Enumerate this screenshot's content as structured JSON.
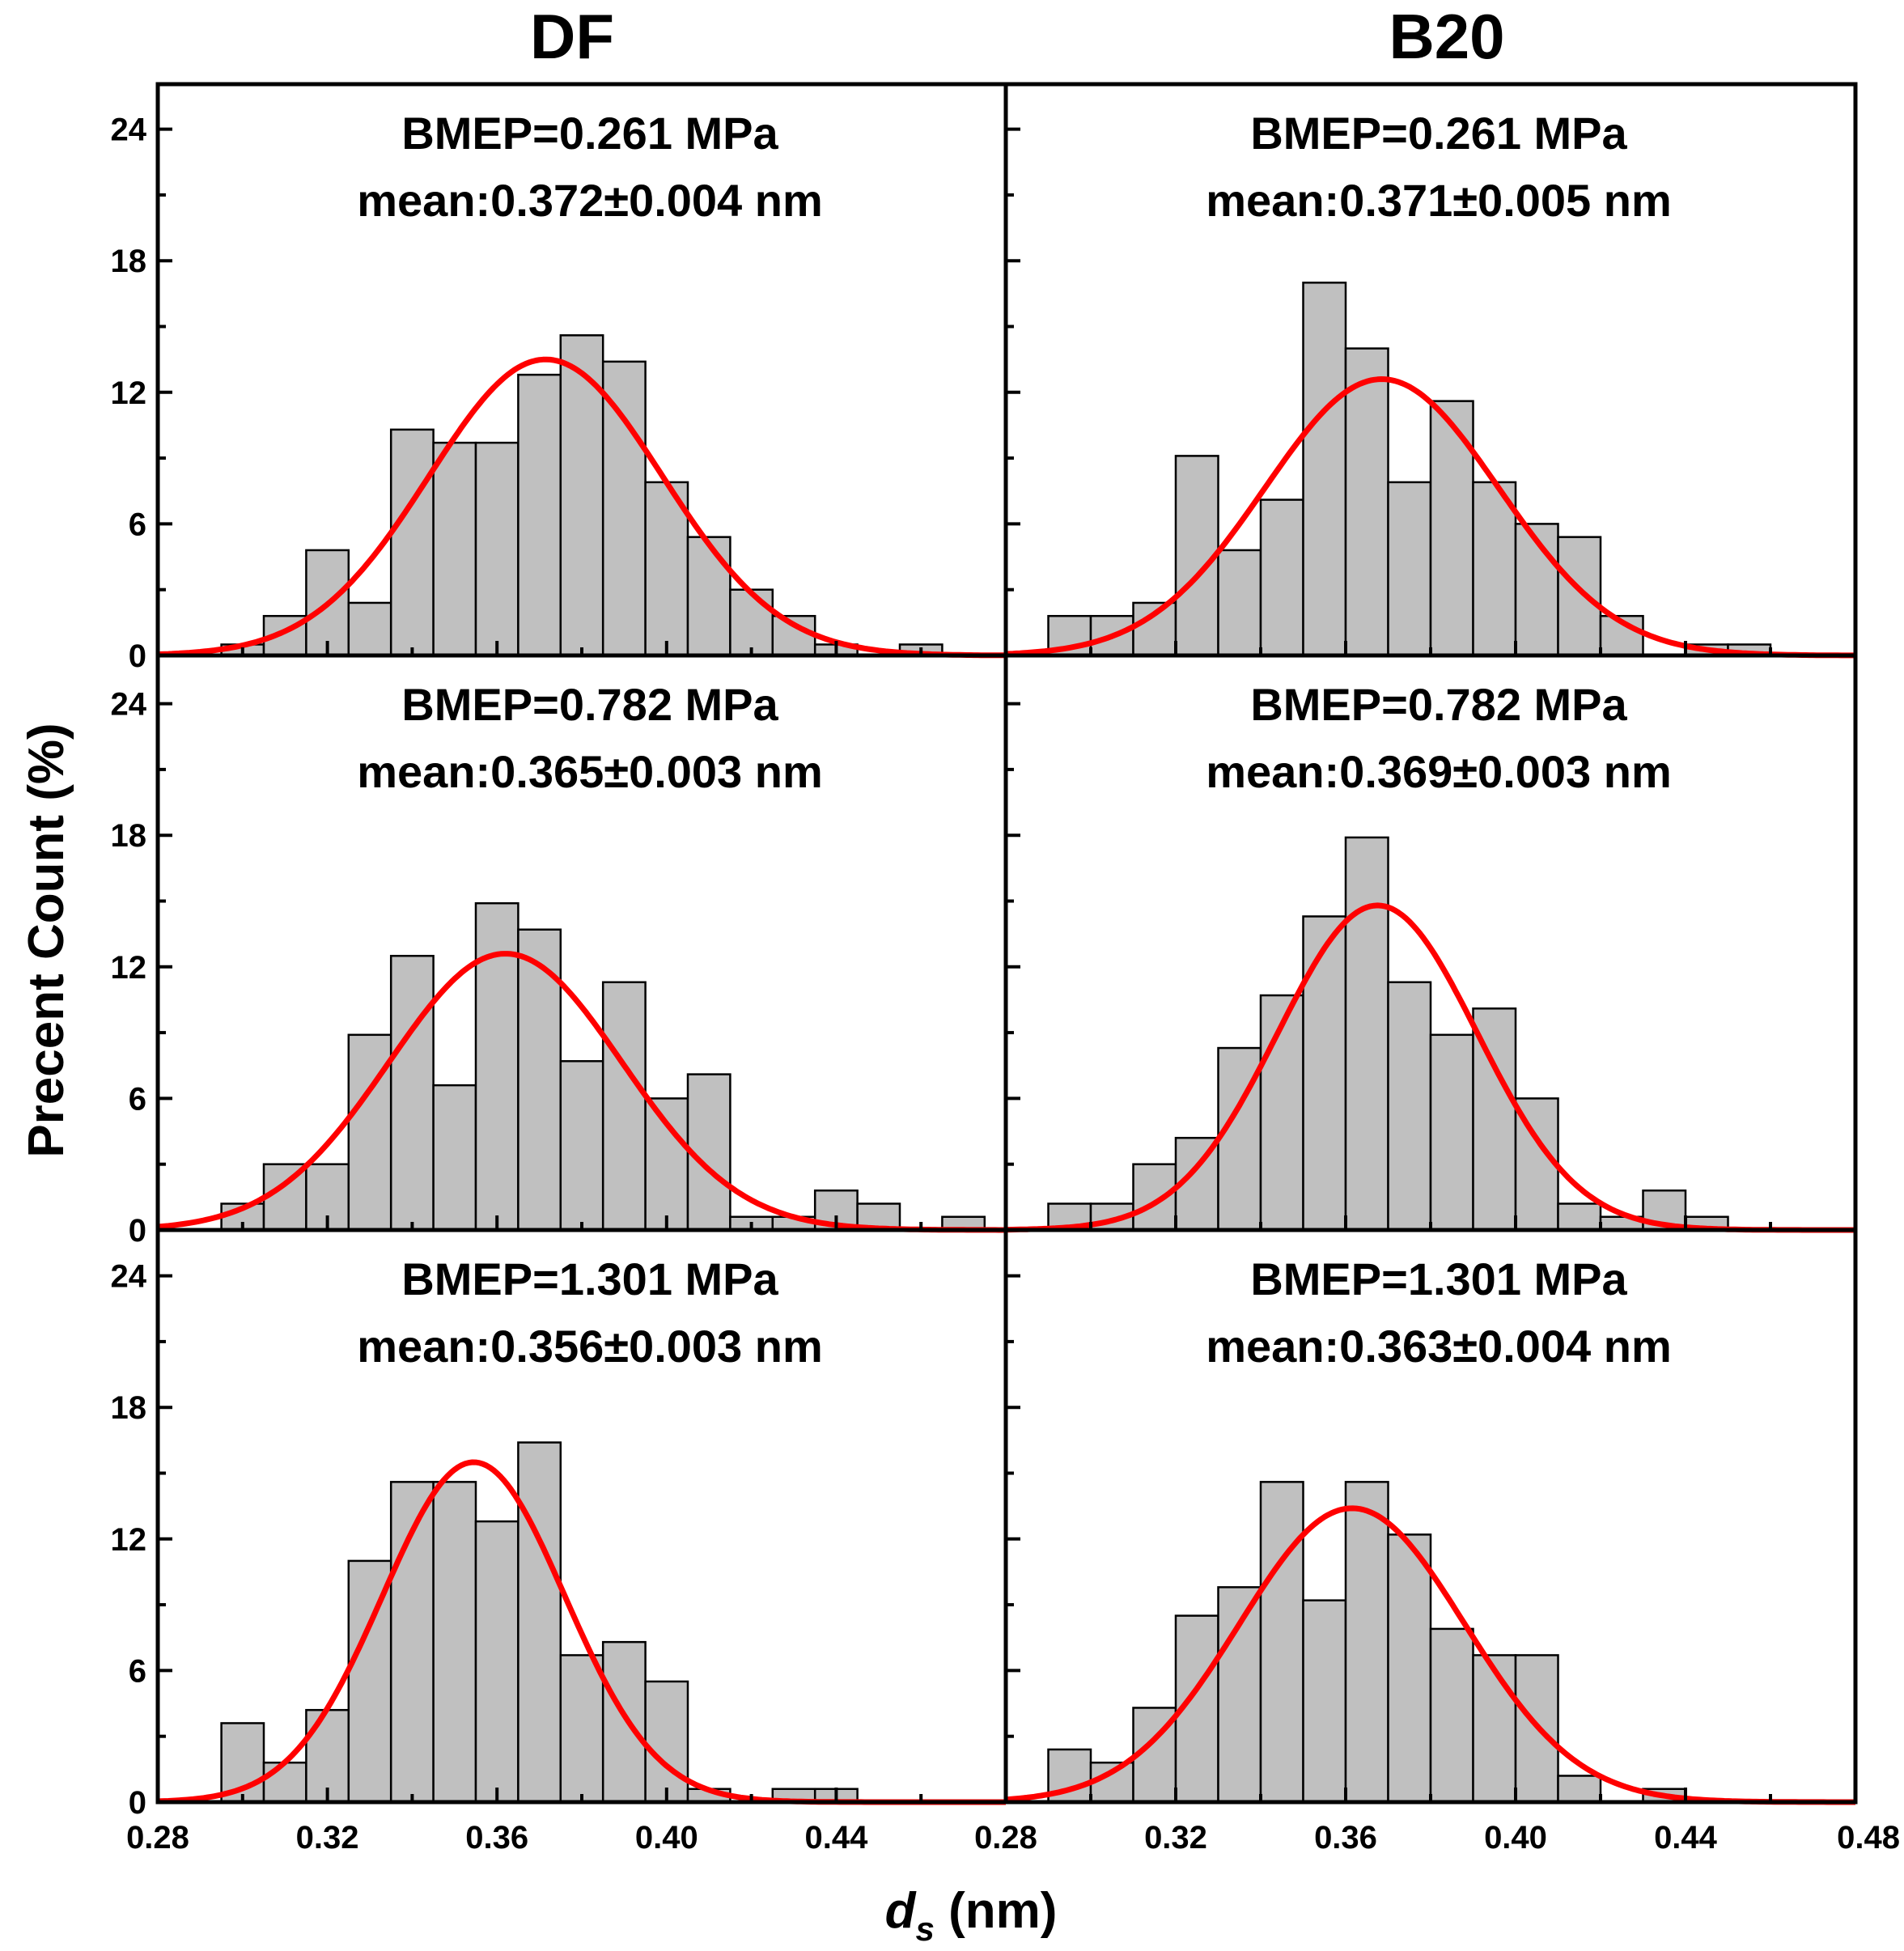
{
  "chart_data": {
    "type": "bar",
    "grid": false,
    "column_titles": [
      "DF",
      "B20"
    ],
    "ylabel": "Precent Count (%)",
    "xlabel_main": "d",
    "xlabel_sub": "s",
    "xlabel_unit": " (nm)",
    "xlim": [
      0.28,
      0.48
    ],
    "ylim": [
      0,
      26
    ],
    "bin_width": 0.01,
    "y_ticks": [
      0,
      6,
      12,
      18,
      24
    ],
    "y_tick_labels": [
      "0",
      "6",
      "12",
      "18",
      "24"
    ],
    "x_tick_labels_left": [
      "0.28",
      "0.32",
      "0.36",
      "0.40",
      "0.44"
    ],
    "x_tick_labels_right": [
      "0.28",
      "0.32",
      "0.36",
      "0.40",
      "0.44",
      "0.48"
    ],
    "panels": [
      {
        "fuel": "DF",
        "bmep": "BMEP=0.261 MPa",
        "mean": "mean:0.372±0.004 nm",
        "bin_centers": [
          0.3,
          0.31,
          0.32,
          0.33,
          0.34,
          0.35,
          0.36,
          0.37,
          0.38,
          0.39,
          0.4,
          0.41,
          0.42,
          0.43,
          0.44,
          0.45,
          0.46
        ],
        "values": [
          0.5,
          1.8,
          4.8,
          2.4,
          10.3,
          9.7,
          9.7,
          12.8,
          14.6,
          13.4,
          7.9,
          5.4,
          3.0,
          1.8,
          0.5,
          0,
          0.5
        ],
        "fit": {
          "center": 0.3715,
          "amplitude": 13.5,
          "sigma": 0.0275
        }
      },
      {
        "fuel": "B20",
        "bmep": "BMEP=0.261 MPa",
        "mean": "mean:0.371±0.005 nm",
        "bin_centers": [
          0.295,
          0.305,
          0.315,
          0.325,
          0.335,
          0.345,
          0.355,
          0.365,
          0.375,
          0.385,
          0.395,
          0.405,
          0.415,
          0.425,
          0.435,
          0.445,
          0.455
        ],
        "values": [
          1.8,
          1.8,
          2.4,
          9.1,
          4.8,
          7.1,
          17.0,
          14.0,
          7.9,
          11.6,
          7.9,
          6.0,
          5.4,
          1.8,
          0,
          0.5,
          0.5
        ],
        "fit": {
          "center": 0.3685,
          "amplitude": 12.6,
          "sigma": 0.0275
        }
      },
      {
        "fuel": "DF",
        "bmep": "BMEP=0.782 MPa",
        "mean": "mean:0.365±0.003 nm",
        "bin_centers": [
          0.3,
          0.31,
          0.32,
          0.33,
          0.34,
          0.35,
          0.36,
          0.37,
          0.38,
          0.39,
          0.4,
          0.41,
          0.42,
          0.43,
          0.44,
          0.45,
          0.46,
          0.47
        ],
        "values": [
          1.2,
          3.0,
          3.0,
          8.9,
          12.5,
          6.6,
          14.9,
          13.7,
          7.7,
          11.3,
          6.0,
          7.1,
          0.6,
          0.6,
          1.8,
          1.2,
          0,
          0.6
        ],
        "fit": {
          "center": 0.362,
          "amplitude": 12.6,
          "sigma": 0.0275
        }
      },
      {
        "fuel": "B20",
        "bmep": "BMEP=0.782 MPa",
        "mean": "mean:0.369±0.003 nm",
        "bin_centers": [
          0.295,
          0.305,
          0.315,
          0.325,
          0.335,
          0.345,
          0.355,
          0.365,
          0.375,
          0.385,
          0.395,
          0.405,
          0.415,
          0.425,
          0.435,
          0.445,
          0.455
        ],
        "values": [
          1.2,
          1.2,
          3.0,
          4.2,
          8.3,
          10.7,
          14.3,
          17.9,
          11.3,
          8.9,
          10.1,
          6.0,
          1.2,
          0.6,
          1.8,
          0.6,
          0
        ],
        "fit": {
          "center": 0.3675,
          "amplitude": 14.8,
          "sigma": 0.0235
        }
      },
      {
        "fuel": "DF",
        "bmep": "BMEP=1.301 MPa",
        "mean": "mean:0.356±0.003 nm",
        "bin_centers": [
          0.3,
          0.31,
          0.32,
          0.33,
          0.34,
          0.35,
          0.36,
          0.37,
          0.38,
          0.39,
          0.4,
          0.41,
          0.42,
          0.43,
          0.44
        ],
        "values": [
          3.6,
          1.8,
          4.2,
          11.0,
          14.6,
          14.6,
          12.8,
          16.4,
          6.7,
          7.3,
          5.5,
          0.6,
          0,
          0.6,
          0.6
        ],
        "fit": {
          "center": 0.3545,
          "amplitude": 15.5,
          "sigma": 0.0215
        }
      },
      {
        "fuel": "B20",
        "bmep": "BMEP=1.301 MPa",
        "mean": "mean:0.363±0.004 nm",
        "bin_centers": [
          0.295,
          0.305,
          0.315,
          0.325,
          0.335,
          0.345,
          0.355,
          0.365,
          0.375,
          0.385,
          0.395,
          0.405,
          0.415,
          0.425,
          0.435
        ],
        "values": [
          2.4,
          1.8,
          4.3,
          8.5,
          9.8,
          14.6,
          9.2,
          14.6,
          12.2,
          7.9,
          6.7,
          6.7,
          1.2,
          0,
          0.6
        ],
        "fit": {
          "center": 0.3615,
          "amplitude": 13.4,
          "sigma": 0.0265
        }
      }
    ]
  }
}
